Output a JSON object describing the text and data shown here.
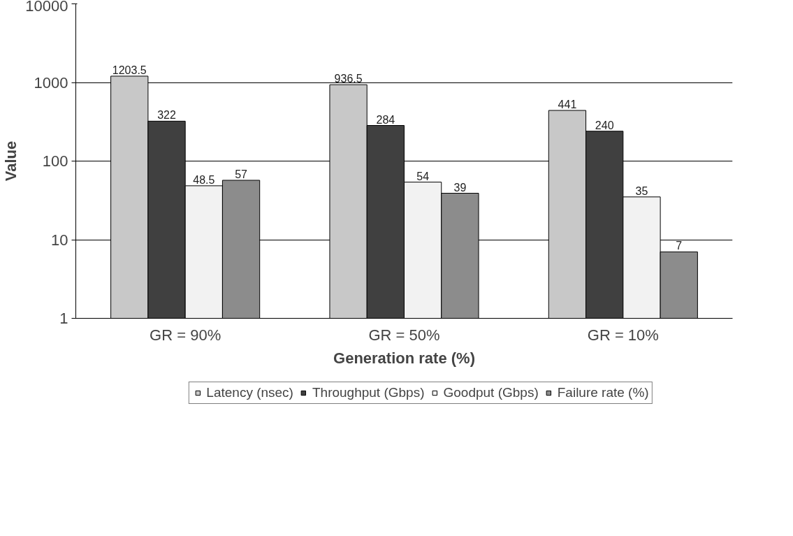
{
  "chart_data": {
    "type": "bar",
    "xlabel": "Generation rate (%)",
    "ylabel": "Value",
    "categories": [
      "GR = 90%",
      "GR = 50%",
      "GR = 10%"
    ],
    "series": [
      {
        "name": "Latency (nsec)",
        "color": "#c8c8c8",
        "values": [
          1203.5,
          936.5,
          441
        ]
      },
      {
        "name": "Throughput (Gbps)",
        "color": "#404040",
        "values": [
          322,
          284,
          240
        ]
      },
      {
        "name": "Goodput (Gbps)",
        "color": "#f2f2f2",
        "values": [
          48.5,
          54,
          35
        ]
      },
      {
        "name": "Failure rate (%)",
        "color": "#8c8c8c",
        "values": [
          57,
          39,
          7
        ]
      }
    ],
    "log": true,
    "ylim": [
      1,
      10000
    ],
    "yticks": [
      1,
      10,
      100,
      1000,
      10000
    ],
    "grid": "y",
    "legend": "bottom",
    "data_labels": true
  }
}
